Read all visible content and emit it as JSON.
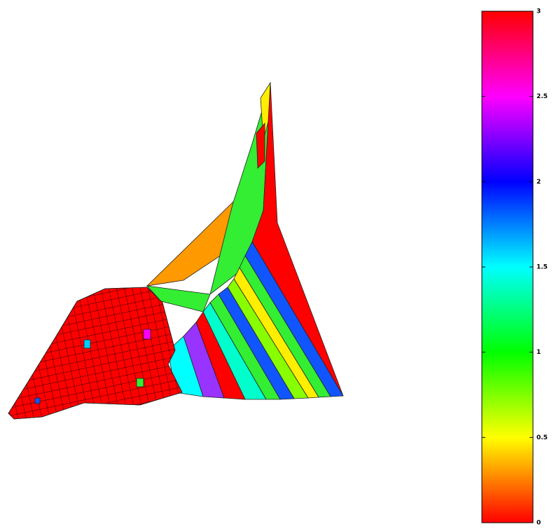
{
  "chart_data": {
    "type": "colorbar",
    "clim": [
      0,
      3
    ],
    "ticks": [
      0,
      0.5,
      1,
      1.5,
      2,
      2.5,
      3
    ],
    "colormap": [
      {
        "value": 0,
        "color": "#ff0000"
      },
      {
        "value": 0.5,
        "color": "#ffff00"
      },
      {
        "value": 1,
        "color": "#00ff00"
      },
      {
        "value": 1.5,
        "color": "#00ffff"
      },
      {
        "value": 2,
        "color": "#0000ff"
      },
      {
        "value": 2.5,
        "color": "#ff00ff"
      },
      {
        "value": 3,
        "color": "#ff0000"
      }
    ]
  }
}
